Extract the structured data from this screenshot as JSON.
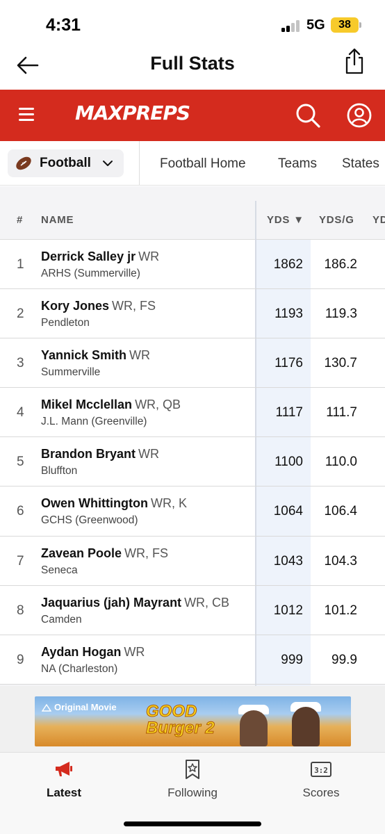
{
  "status_bar": {
    "time": "4:31",
    "network": "5G",
    "battery": "38"
  },
  "header": {
    "title": "Full Stats"
  },
  "brand": {
    "logo": "MAXPREPS",
    "accent": "#d42b1e"
  },
  "sport_nav": {
    "selected_sport": "Football",
    "links": [
      "Football Home",
      "Teams",
      "States"
    ]
  },
  "table": {
    "columns": {
      "rank": "#",
      "name": "NAME",
      "yds": "YDS ▼",
      "ydsg": "YDS/G",
      "next": "YD"
    },
    "sorted_by": "YDS",
    "rows": [
      {
        "rank": "1",
        "name": "Derrick Salley jr",
        "pos": "WR",
        "school": "ARHS (Summerville)",
        "yds": "1862",
        "ydsg": "186.2"
      },
      {
        "rank": "2",
        "name": "Kory Jones",
        "pos": "WR, FS",
        "school": "Pendleton",
        "yds": "1193",
        "ydsg": "119.3"
      },
      {
        "rank": "3",
        "name": "Yannick Smith",
        "pos": "WR",
        "school": "Summerville",
        "yds": "1176",
        "ydsg": "130.7"
      },
      {
        "rank": "4",
        "name": "Mikel Mcclellan",
        "pos": "WR, QB",
        "school": "J.L. Mann (Greenville)",
        "yds": "1117",
        "ydsg": "111.7"
      },
      {
        "rank": "5",
        "name": "Brandon Bryant",
        "pos": "WR",
        "school": "Bluffton",
        "yds": "1100",
        "ydsg": "110.0"
      },
      {
        "rank": "6",
        "name": "Owen Whittington",
        "pos": "WR, K",
        "school": "GCHS (Greenwood)",
        "yds": "1064",
        "ydsg": "106.4"
      },
      {
        "rank": "7",
        "name": "Zavean Poole",
        "pos": "WR, FS",
        "school": "Seneca",
        "yds": "1043",
        "ydsg": "104.3"
      },
      {
        "rank": "8",
        "name": "Jaquarius (jah) Mayrant",
        "pos": "WR, CB",
        "school": "Camden",
        "yds": "1012",
        "ydsg": "101.2"
      },
      {
        "rank": "9",
        "name": "Aydan Hogan",
        "pos": "WR",
        "school": "NA (Charleston)",
        "yds": "999",
        "ydsg": "99.9"
      }
    ]
  },
  "ad": {
    "brand": "Original Movie",
    "title_line1": "GOOD",
    "title_line2": "Burger 2"
  },
  "tab_bar": {
    "tabs": [
      {
        "label": "Latest",
        "icon": "megaphone-icon",
        "active": true
      },
      {
        "label": "Following",
        "icon": "bookmark-star-icon",
        "active": false
      },
      {
        "label": "Scores",
        "icon": "scoreboard-icon",
        "active": false
      }
    ]
  }
}
